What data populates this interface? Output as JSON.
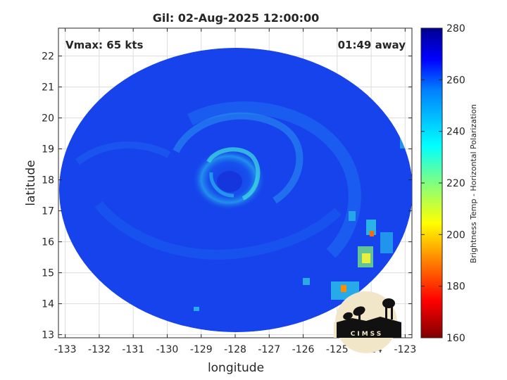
{
  "chart_data": {
    "type": "heatmap",
    "title": "Gil: 02-Aug-2025 12:00:00",
    "xlabel": "longitude",
    "ylabel": "latitude",
    "xlim": [
      -133.2,
      -122.8
    ],
    "ylim": [
      12.9,
      22.9
    ],
    "xticks": [
      -133,
      -132,
      -131,
      -130,
      -129,
      -128,
      -127,
      -126,
      -125,
      -124,
      -123
    ],
    "yticks": [
      13,
      14,
      15,
      16,
      17,
      18,
      19,
      20,
      21,
      22
    ],
    "grid": true,
    "annotations": {
      "left": "Vmax: 65 kts",
      "right": "01:49 away"
    },
    "center": {
      "lon": -128.1,
      "lat": 18.05
    },
    "colorbar": {
      "label": "Brightness Temp - Horizontal Polarization",
      "min": 160,
      "max": 280,
      "ticks": [
        160,
        180,
        200,
        220,
        240,
        260,
        280
      ]
    },
    "logo": "CIMSS"
  }
}
